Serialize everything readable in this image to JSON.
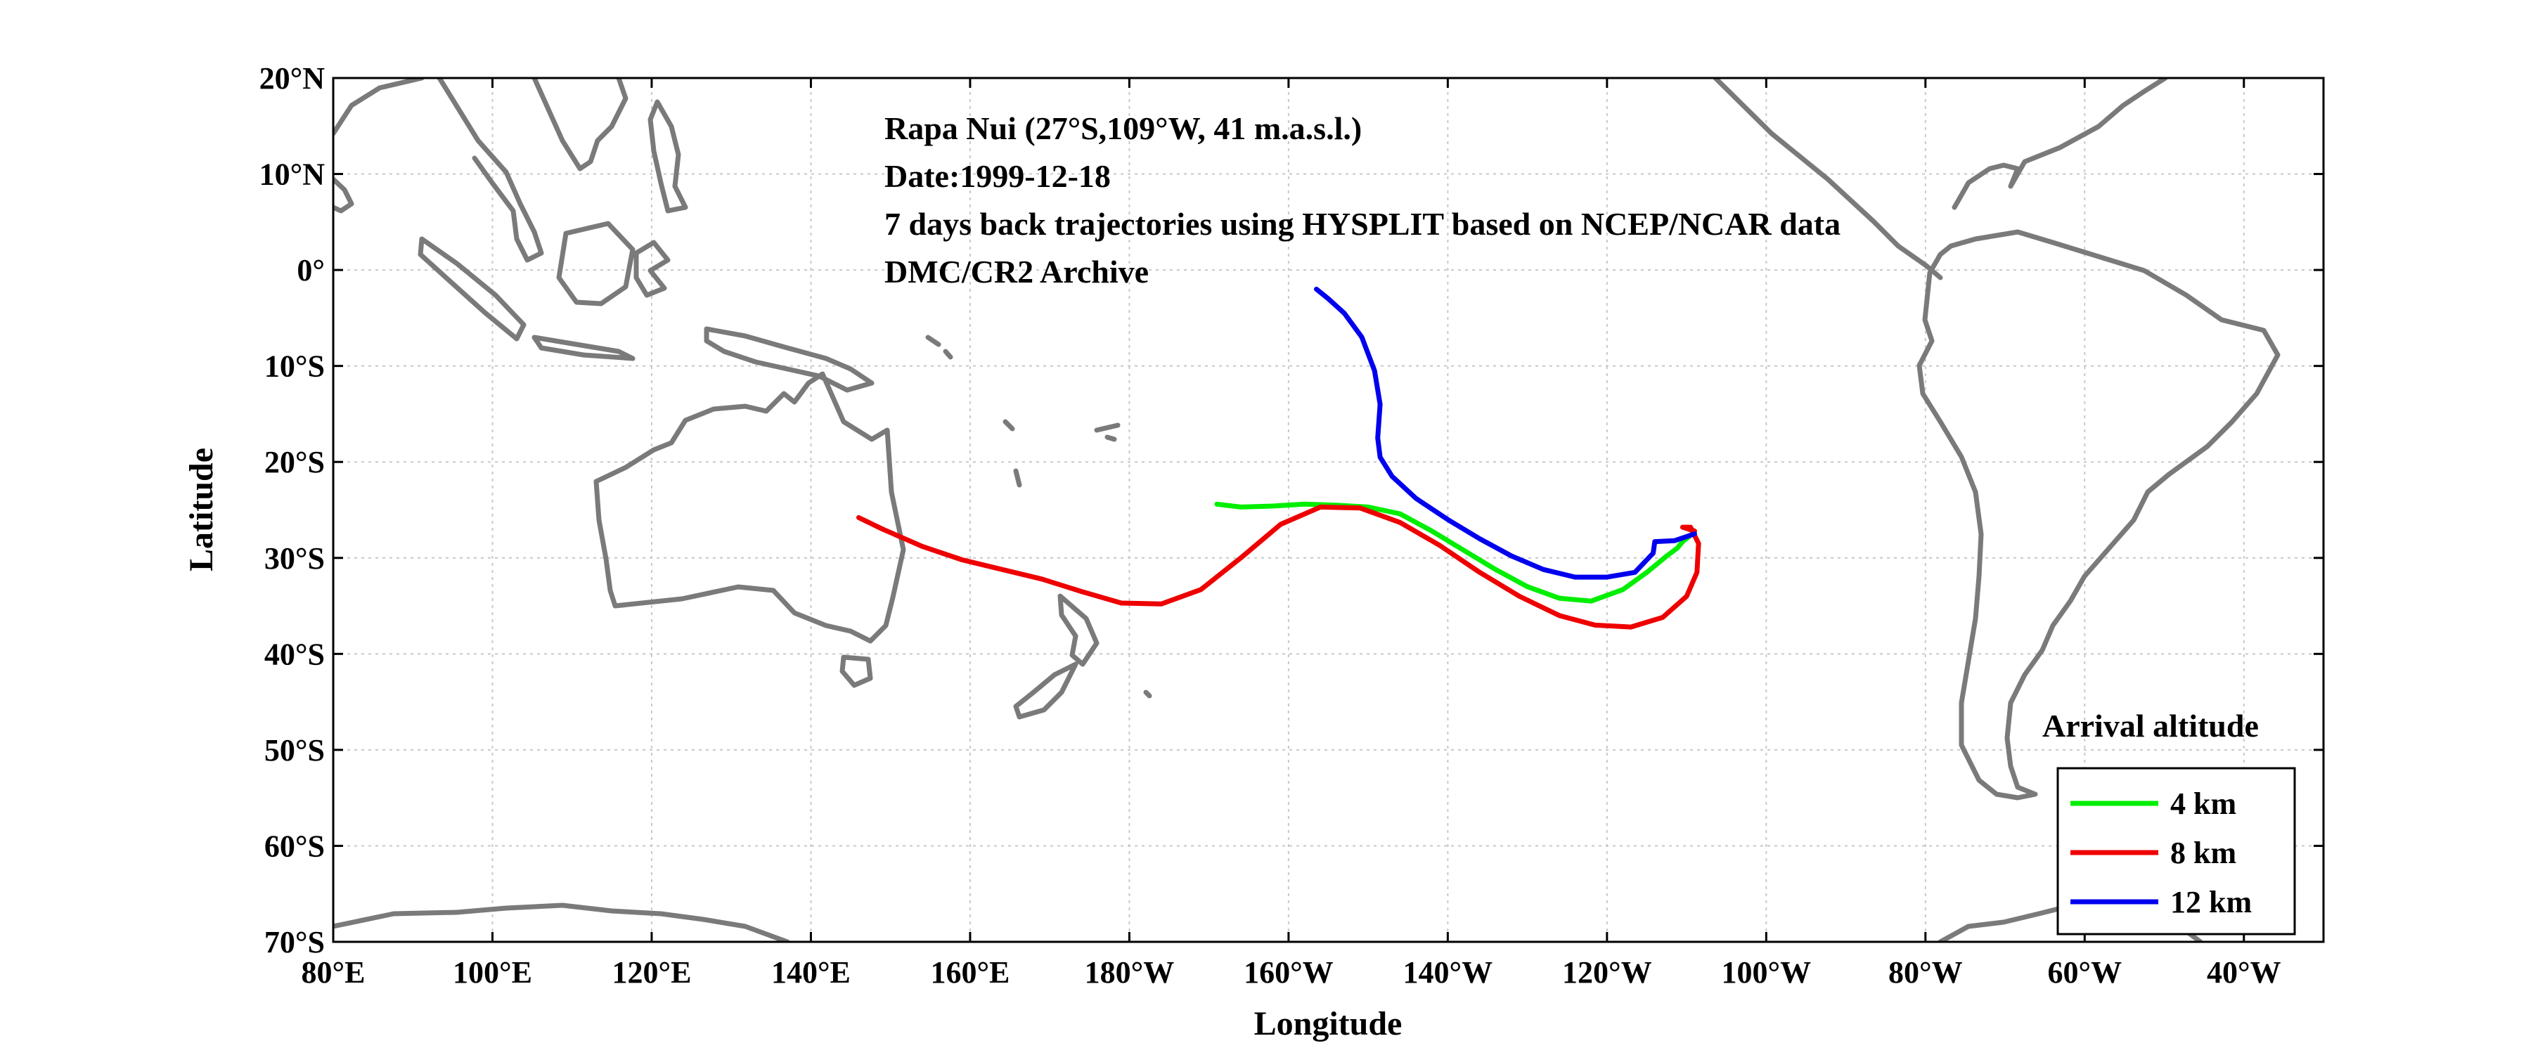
{
  "chart_data": {
    "type": "line",
    "annotation_lines": [
      "Rapa Nui (27°S,109°W, 41 m.a.s.l.)",
      "Date:1999-12-18",
      "7 days back trajectories using HYSPLIT based on NCEP/NCAR data",
      "DMC/CR2 Archive"
    ],
    "xlabel": "Longitude",
    "ylabel": "Latitude",
    "xlim": [
      80,
      330
    ],
    "ylim": [
      -70,
      20
    ],
    "x_ticks": [
      80,
      100,
      120,
      140,
      160,
      180,
      200,
      220,
      240,
      260,
      280,
      300,
      320
    ],
    "x_tick_labels": [
      "80°E",
      "100°E",
      "120°E",
      "140°E",
      "160°E",
      "180°W",
      "160°W",
      "140°W",
      "120°W",
      "100°W",
      "80°W",
      "60°W",
      "40°W"
    ],
    "y_ticks": [
      20,
      10,
      0,
      -10,
      -20,
      -30,
      -40,
      -50,
      -60,
      -70
    ],
    "y_tick_labels": [
      "20°N",
      "10°N",
      "0°",
      "10°S",
      "20°S",
      "30°S",
      "40°S",
      "50°S",
      "60°S",
      "70°S"
    ],
    "grid": true,
    "legend": {
      "title": "Arrival altitude",
      "position": "lower-right"
    },
    "colors": {
      "coastline": "#7a7a7a",
      "grid": "#c8c8c8"
    },
    "series": [
      {
        "name": "4 km",
        "color": "#00ee00",
        "x": [
          251,
          249.5,
          248.8,
          247.5,
          245,
          242,
          238,
          234,
          230,
          226,
          222,
          218,
          214,
          210,
          206,
          202,
          198,
          194,
          191
        ],
        "y": [
          -27.3,
          -28.3,
          -29,
          -29.8,
          -31.5,
          -33.3,
          -34.5,
          -34.2,
          -33,
          -31.2,
          -29.2,
          -27.2,
          -25.4,
          -24.7,
          -24.5,
          -24.4,
          -24.6,
          -24.7,
          -24.4
        ]
      },
      {
        "name": "8 km",
        "color": "#ee0000",
        "x": [
          251,
          249.5,
          250.5,
          251.5,
          251.3,
          250,
          247,
          243,
          238.5,
          234,
          229,
          224,
          219,
          214,
          209,
          204,
          199,
          194,
          189,
          184,
          179,
          174,
          169,
          164,
          159,
          154,
          149,
          146
        ],
        "y": [
          -27.2,
          -26.8,
          -26.8,
          -28.5,
          -31.5,
          -34,
          -36.2,
          -37.2,
          -37,
          -36,
          -34,
          -31.5,
          -28.7,
          -26.3,
          -24.8,
          -24.7,
          -26.5,
          -30,
          -33.3,
          -34.8,
          -34.7,
          -33.5,
          -32.2,
          -31.2,
          -30.2,
          -28.8,
          -27,
          -25.8
        ]
      },
      {
        "name": "12 km",
        "color": "#0000ee",
        "x": [
          251,
          248.5,
          246,
          245.8,
          243.5,
          240,
          236,
          232,
          228,
          224,
          220,
          216,
          213,
          211.5,
          211.2,
          211.5,
          210.8,
          209.2,
          207,
          205,
          203.5
        ],
        "y": [
          -27.5,
          -28.2,
          -28.3,
          -29.5,
          -31.5,
          -32,
          -32,
          -31.2,
          -29.8,
          -28,
          -26,
          -23.8,
          -21.5,
          -19.5,
          -17.5,
          -14,
          -10.5,
          -7,
          -4.5,
          -3,
          -2
        ]
      }
    ]
  }
}
